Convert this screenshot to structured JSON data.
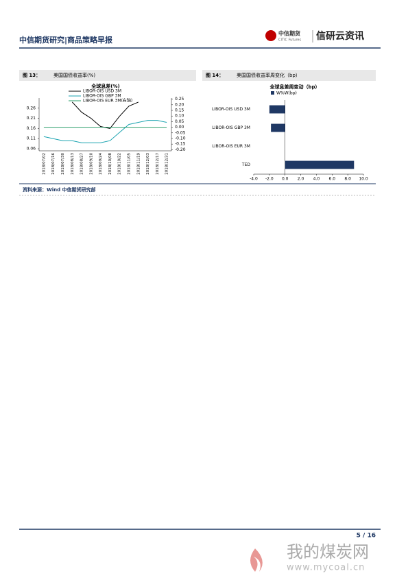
{
  "header": {
    "title": "中信期货研究|商品策略早报",
    "logo_small": "中信期货",
    "logo_sub": "CITIC Futures",
    "logo": "信研云资讯"
  },
  "chart_data": [
    {
      "type": "line",
      "figure_label": "图 13：",
      "caption": "美国国债收益率(%)",
      "title": "全球息差(%)",
      "categories": [
        "2018/07/02",
        "2018/07/16",
        "2018/07/30",
        "2018/08/13",
        "2018/08/27",
        "2018/09/10",
        "2018/09/24",
        "2018/10/08",
        "2018/10/22",
        "2018/11/05",
        "2018/11/19",
        "2018/12/03",
        "2018/12/17",
        "2018/12/31"
      ],
      "series": [
        {
          "name": "LIBOR-OIS USD 3M",
          "color": "#000000",
          "values": [
            null,
            null,
            null,
            0.29,
            0.24,
            0.21,
            0.17,
            0.16,
            0.22,
            0.27,
            0.29,
            null,
            null,
            null
          ]
        },
        {
          "name": "LIBOR-OIS GBP 3M",
          "color": "#1aa3b0",
          "values": [
            0.12,
            0.11,
            0.1,
            0.1,
            0.09,
            0.09,
            0.09,
            0.1,
            0.14,
            0.18,
            0.19,
            0.2,
            0.2,
            0.19
          ]
        },
        {
          "name": "LIBOR-OIS EUR 3M(右轴)",
          "color": "#2a9d6a",
          "axis": "y2",
          "values": [
            0,
            0,
            0,
            0,
            0,
            0,
            0,
            0,
            0,
            0,
            0,
            0,
            0,
            0
          ]
        }
      ],
      "ylim": [
        0.05,
        0.31
      ],
      "yticks": [
        0.06,
        0.11,
        0.16,
        0.21,
        0.26
      ],
      "y2lim": [
        -0.21,
        0.26
      ],
      "y2ticks": [
        {
          "value": 0.25,
          "label": "0.25"
        },
        {
          "value": 0.2,
          "label": "0.20"
        },
        {
          "value": 0.15,
          "label": "0.15"
        },
        {
          "value": 0.1,
          "label": "0.10"
        },
        {
          "value": 0.05,
          "label": "0.05"
        },
        {
          "value": 0,
          "label": "0.00"
        },
        {
          "value": -0.05,
          "label": "-0.05"
        },
        {
          "value": -0.1,
          "label": "-0.10"
        },
        {
          "value": -0.15,
          "label": "-0.15"
        },
        {
          "value": -0.2,
          "label": "-0.20"
        }
      ]
    },
    {
      "type": "bar",
      "horizontal": true,
      "figure_label": "图 14：",
      "caption": "美国国债收益率周变化（bp）",
      "title": "全球息差周变动（bp）",
      "categories": [
        "LIBOR-OIS USD 3M",
        "LIBOR-OIS GBP 3M",
        "LIBOR-OIS EUR 3M",
        "TED"
      ],
      "series": [
        {
          "name": "W%W(bp)",
          "color": "#1f3864",
          "values": [
            -2.0,
            -1.8,
            0,
            8.8
          ]
        }
      ],
      "xlim": [
        -4,
        10
      ],
      "xticks": [
        {
          "value": -4,
          "label": "-4.0"
        },
        {
          "value": -2,
          "label": "-2.0"
        },
        {
          "value": 0,
          "label": "0.0"
        },
        {
          "value": 2,
          "label": "2.0"
        },
        {
          "value": 4,
          "label": "4.0"
        },
        {
          "value": 6,
          "label": "6.0"
        },
        {
          "value": 8,
          "label": "8.0"
        },
        {
          "value": 10,
          "label": "10.0"
        }
      ]
    }
  ],
  "source": "资料来源：Wind  中信期货研究部",
  "page_number": "5 / 16",
  "watermark": {
    "name": "我的煤炭网",
    "url": "www.mycoal.cn"
  }
}
